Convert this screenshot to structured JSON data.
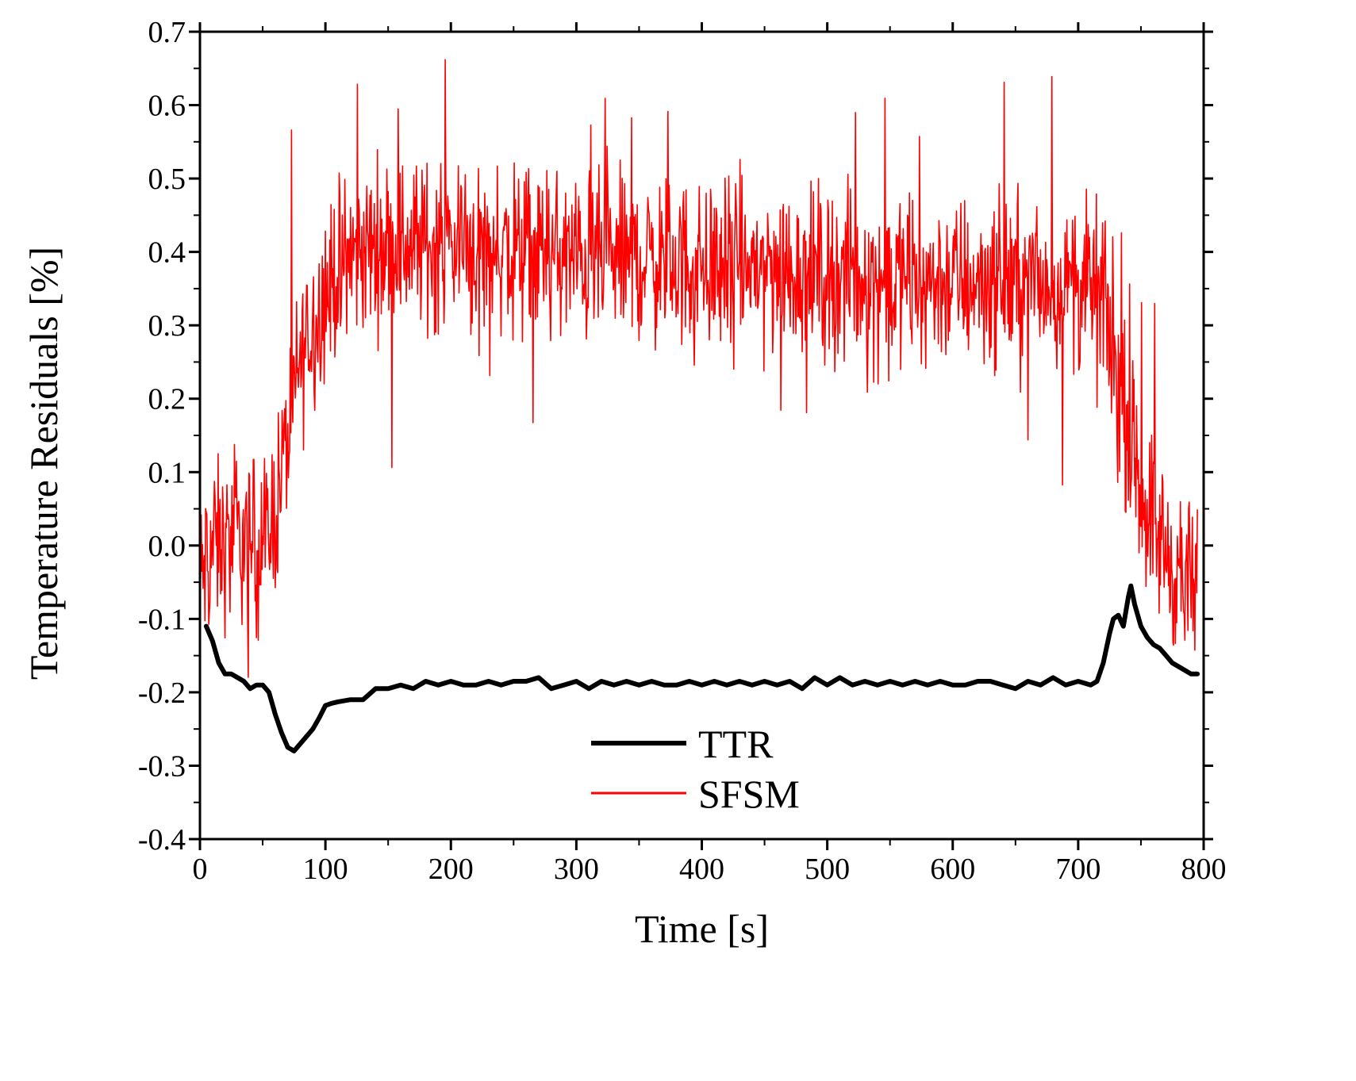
{
  "chart_data": {
    "type": "line",
    "xlabel": "Time [s]",
    "ylabel": "Temperature Residuals [%]",
    "xlim": [
      0,
      800
    ],
    "ylim": [
      -0.4,
      0.7
    ],
    "x_ticks": [
      0,
      100,
      200,
      300,
      400,
      500,
      600,
      700,
      800
    ],
    "x_tick_labels": [
      "0",
      "100",
      "200",
      "300",
      "400",
      "500",
      "600",
      "700",
      "800"
    ],
    "y_ticks": [
      -0.4,
      -0.3,
      -0.2,
      -0.1,
      0.0,
      0.1,
      0.2,
      0.3,
      0.4,
      0.5,
      0.6,
      0.7
    ],
    "y_tick_labels": [
      "-0.4",
      "-0.3",
      "-0.2",
      "-0.1",
      "0.0",
      "0.1",
      "0.2",
      "0.3",
      "0.4",
      "0.5",
      "0.6",
      "0.7"
    ],
    "legend_position": "bottom-center",
    "series": [
      {
        "name": "TTR",
        "color": "#000000",
        "x": [
          5,
          10,
          15,
          20,
          25,
          30,
          35,
          40,
          45,
          50,
          55,
          60,
          65,
          70,
          75,
          80,
          85,
          90,
          95,
          100,
          105,
          110,
          120,
          130,
          140,
          150,
          160,
          170,
          180,
          190,
          200,
          210,
          220,
          230,
          240,
          250,
          260,
          270,
          280,
          290,
          300,
          310,
          320,
          330,
          340,
          350,
          360,
          370,
          380,
          390,
          400,
          410,
          420,
          430,
          440,
          450,
          460,
          470,
          480,
          490,
          500,
          510,
          520,
          530,
          540,
          550,
          560,
          570,
          580,
          590,
          600,
          610,
          620,
          630,
          640,
          650,
          660,
          670,
          680,
          690,
          700,
          710,
          715,
          720,
          725,
          728,
          732,
          736,
          740,
          742,
          745,
          750,
          755,
          760,
          765,
          770,
          775,
          780,
          785,
          790,
          795
        ],
        "y": [
          -0.11,
          -0.13,
          -0.16,
          -0.175,
          -0.175,
          -0.18,
          -0.185,
          -0.195,
          -0.19,
          -0.19,
          -0.2,
          -0.23,
          -0.255,
          -0.275,
          -0.28,
          -0.27,
          -0.26,
          -0.25,
          -0.235,
          -0.218,
          -0.215,
          -0.213,
          -0.21,
          -0.21,
          -0.195,
          -0.195,
          -0.19,
          -0.195,
          -0.185,
          -0.19,
          -0.185,
          -0.19,
          -0.19,
          -0.185,
          -0.19,
          -0.185,
          -0.185,
          -0.18,
          -0.195,
          -0.19,
          -0.185,
          -0.195,
          -0.185,
          -0.19,
          -0.185,
          -0.19,
          -0.185,
          -0.19,
          -0.19,
          -0.185,
          -0.19,
          -0.185,
          -0.19,
          -0.185,
          -0.19,
          -0.185,
          -0.19,
          -0.185,
          -0.195,
          -0.18,
          -0.19,
          -0.18,
          -0.19,
          -0.185,
          -0.19,
          -0.185,
          -0.19,
          -0.185,
          -0.19,
          -0.185,
          -0.19,
          -0.19,
          -0.185,
          -0.185,
          -0.19,
          -0.195,
          -0.185,
          -0.19,
          -0.18,
          -0.19,
          -0.185,
          -0.19,
          -0.185,
          -0.16,
          -0.12,
          -0.1,
          -0.095,
          -0.11,
          -0.07,
          -0.055,
          -0.08,
          -0.11,
          -0.125,
          -0.135,
          -0.14,
          -0.15,
          -0.16,
          -0.165,
          -0.17,
          -0.175,
          -0.175
        ]
      },
      {
        "name": "SFSM",
        "color": "#ff0000",
        "x": [
          0,
          10,
          20,
          30,
          40,
          50,
          55,
          60,
          65,
          70,
          75,
          80,
          85,
          90,
          95,
          100,
          110,
          120,
          130,
          140,
          150,
          160,
          180,
          200,
          250,
          300,
          350,
          400,
          450,
          500,
          550,
          600,
          650,
          700,
          710,
          715,
          720,
          725,
          730,
          740,
          750,
          760,
          770,
          780,
          790,
          795
        ],
        "y": [
          -0.05,
          0.0,
          0.0,
          0.01,
          0.0,
          0.0,
          0.02,
          0.05,
          0.1,
          0.15,
          0.2,
          0.25,
          0.28,
          0.3,
          0.32,
          0.35,
          0.37,
          0.39,
          0.4,
          0.41,
          0.41,
          0.41,
          0.41,
          0.41,
          0.4,
          0.39,
          0.39,
          0.38,
          0.38,
          0.37,
          0.36,
          0.36,
          0.36,
          0.35,
          0.35,
          0.35,
          0.33,
          0.29,
          0.23,
          0.15,
          0.08,
          0.03,
          -0.01,
          -0.04,
          -0.06,
          -0.07
        ],
        "noise_amplitude": 0.07,
        "spike_amplitude": 0.18
      }
    ]
  }
}
